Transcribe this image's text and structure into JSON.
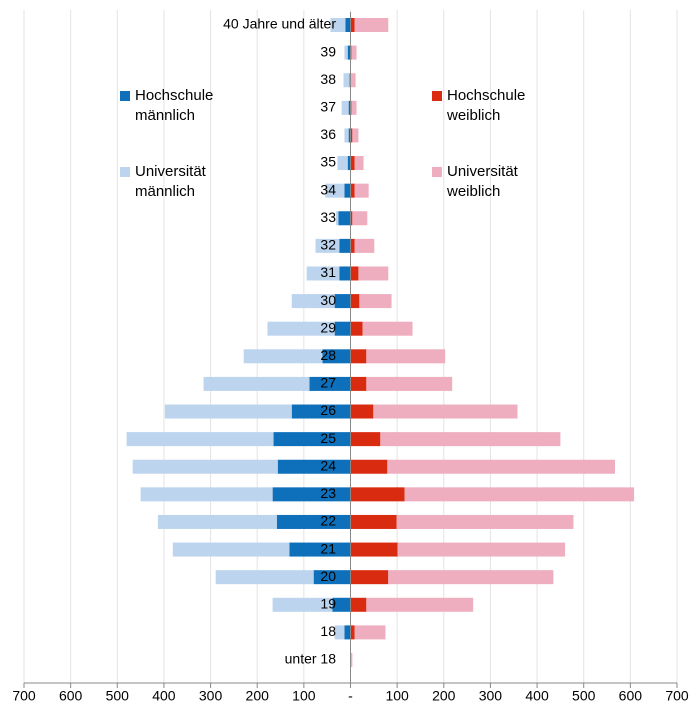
{
  "chart_data": {
    "type": "bar",
    "orientation": "horizontal",
    "stacked": true,
    "categories": [
      "unter 18",
      "18",
      "19",
      "20",
      "21",
      "22",
      "23",
      "24",
      "25",
      "26",
      "27",
      "28",
      "29",
      "30",
      "31",
      "32",
      "33",
      "34",
      "35",
      "36",
      "37",
      "38",
      "39",
      "40 Jahre und älter"
    ],
    "series": [
      {
        "name": "Hochschule männlich",
        "color": "#0e6fba",
        "values": [
          0,
          -13,
          -39,
          -79,
          -131,
          -158,
          -167,
          -156,
          -165,
          -126,
          -88,
          -60,
          -34,
          -34,
          -24,
          -24,
          -26,
          -13,
          -6,
          -4,
          -4,
          -2,
          -6,
          -11
        ]
      },
      {
        "name": "Universität männlich",
        "color": "#bcd4ee",
        "values": [
          0,
          -21,
          -128,
          -210,
          -250,
          -255,
          -283,
          -311,
          -315,
          -272,
          -227,
          -169,
          -144,
          -92,
          -70,
          -51,
          -5,
          -41,
          -22,
          -9,
          -15,
          -13,
          -7,
          -32
        ]
      },
      {
        "name": "Hochschule weiblich",
        "color": "#d92b10",
        "values": [
          1,
          9,
          34,
          81,
          101,
          99,
          116,
          79,
          64,
          49,
          34,
          34,
          26,
          19,
          17,
          9,
          4,
          9,
          9,
          4,
          2,
          0,
          2,
          9
        ]
      },
      {
        "name": "Universität weiblich",
        "color": "#eeaebf",
        "values": [
          3,
          66,
          229,
          354,
          359,
          379,
          492,
          488,
          386,
          309,
          184,
          169,
          107,
          69,
          64,
          42,
          32,
          30,
          19,
          13,
          11,
          11,
          11,
          72
        ]
      }
    ],
    "xlim": [
      -700,
      700
    ],
    "xticks": [
      {
        "value": -700,
        "label": "700"
      },
      {
        "value": -600,
        "label": "600"
      },
      {
        "value": -500,
        "label": "500"
      },
      {
        "value": -400,
        "label": "400"
      },
      {
        "value": -300,
        "label": "300"
      },
      {
        "value": -200,
        "label": "200"
      },
      {
        "value": -100,
        "label": "100"
      },
      {
        "value": 0,
        "label": "-"
      },
      100,
      200,
      300,
      400,
      500,
      600,
      700
    ],
    "grid": true
  }
}
